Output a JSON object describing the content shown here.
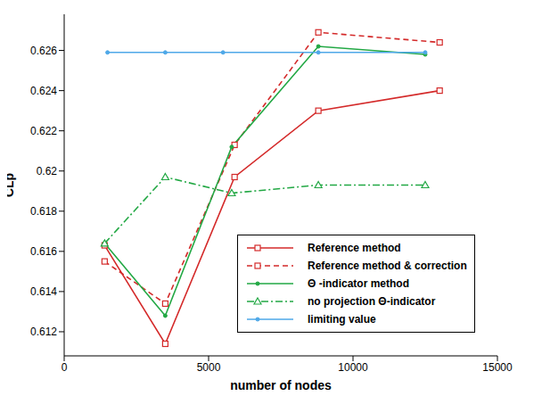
{
  "chart_data": {
    "type": "line",
    "x_label": "number of nodes",
    "y_label": "CLp",
    "xlim": [
      0,
      15000
    ],
    "xticks": [
      0,
      5000,
      10000,
      15000
    ],
    "ylim": [
      0.6108,
      0.6278
    ],
    "yticks": [
      0.612,
      0.614,
      0.616,
      0.618,
      0.62,
      0.622,
      0.624,
      0.626
    ],
    "grid": false,
    "legend": "lower right",
    "series": [
      {
        "name": "Reference method",
        "color": "#d42a2a",
        "marker": "square",
        "line_style": "solid",
        "x": [
          1400,
          3500,
          5900,
          8800,
          13000
        ],
        "values": [
          0.6163,
          0.6114,
          0.6197,
          0.623,
          0.624
        ]
      },
      {
        "name": "Reference method & correction",
        "color": "#d42a2a",
        "marker": "square",
        "line_style": "dashed",
        "x": [
          1400,
          3500,
          5900,
          8800,
          13000
        ],
        "values": [
          0.6155,
          0.6134,
          0.6213,
          0.6269,
          0.6264
        ]
      },
      {
        "name": "Θ -indicator method",
        "color": "#22a844",
        "marker": "circle",
        "line_style": "solid",
        "x": [
          1400,
          3500,
          5800,
          8800,
          12500
        ],
        "values": [
          0.6164,
          0.6128,
          0.6212,
          0.6262,
          0.6258
        ]
      },
      {
        "name": "no projection Θ-indicator",
        "color": "#22a844",
        "marker": "triangle",
        "line_style": "dashdot",
        "x": [
          1400,
          3500,
          5800,
          8800,
          12500
        ],
        "values": [
          0.6164,
          0.6197,
          0.6189,
          0.6193,
          0.6193
        ]
      },
      {
        "name": "limiting value",
        "color": "#4ea8e8",
        "marker": "circle",
        "line_style": "solid",
        "x": [
          1500,
          3500,
          5500,
          8800,
          12500
        ],
        "values": [
          0.6259,
          0.6259,
          0.6259,
          0.6259,
          0.6259
        ]
      }
    ]
  }
}
